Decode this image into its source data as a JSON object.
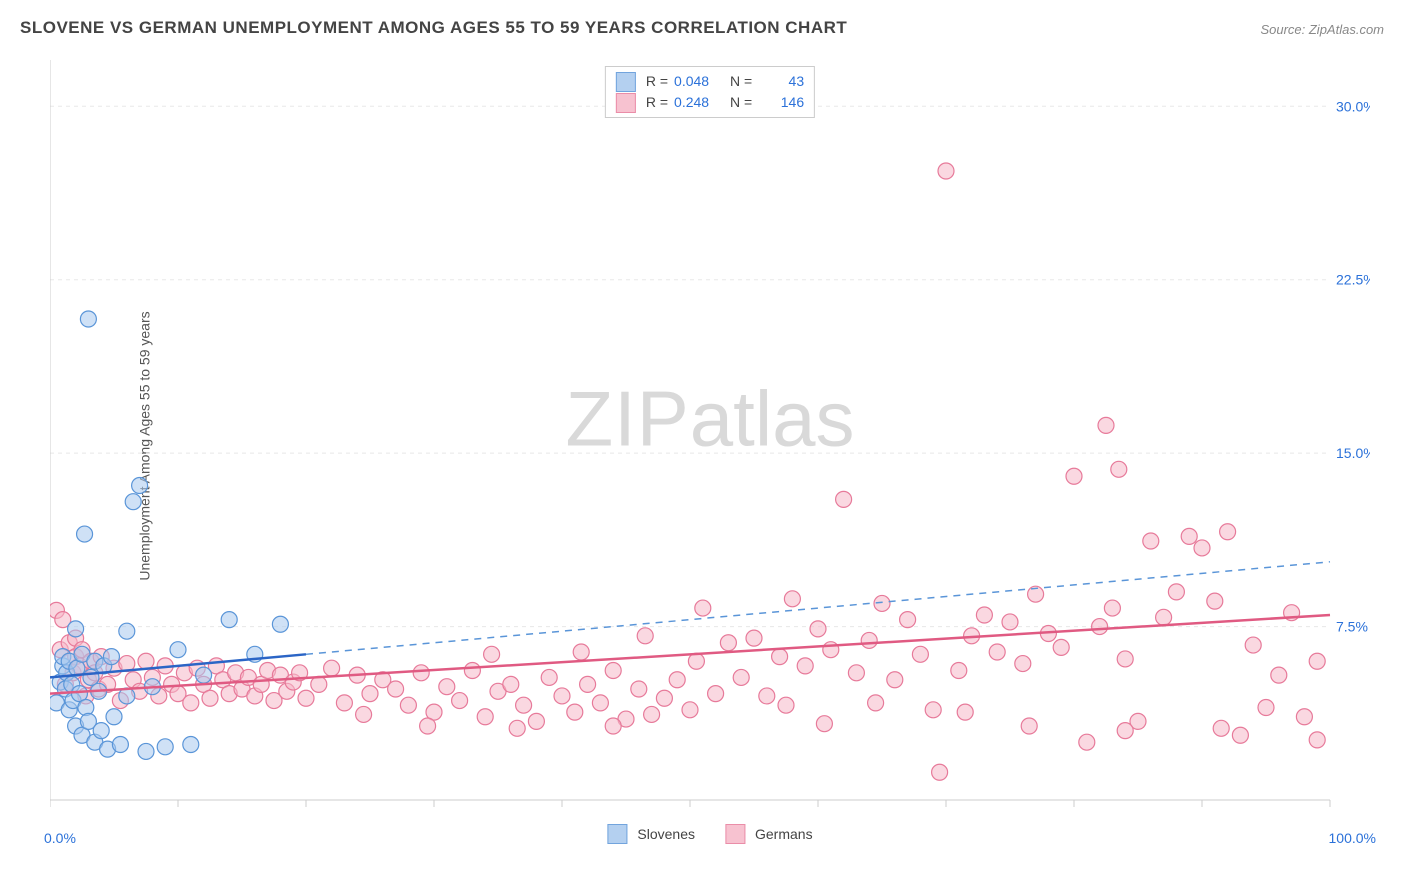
{
  "title": "SLOVENE VS GERMAN UNEMPLOYMENT AMONG AGES 55 TO 59 YEARS CORRELATION CHART",
  "source": "Source: ZipAtlas.com",
  "ylabel": "Unemployment Among Ages 55 to 59 years",
  "watermark_a": "ZIP",
  "watermark_b": "atlas",
  "chart": {
    "type": "scatter",
    "xlim": [
      0,
      100
    ],
    "ylim": [
      0,
      32
    ],
    "yticks": [
      7.5,
      15.0,
      22.5,
      30.0
    ],
    "ytick_labels": [
      "7.5%",
      "15.0%",
      "22.5%",
      "30.0%"
    ],
    "xticks": [
      0,
      10,
      20,
      30,
      40,
      50,
      60,
      70,
      80,
      90,
      100
    ],
    "xlabel_min": "0.0%",
    "xlabel_max": "100.0%",
    "background_color": "#ffffff",
    "grid_color": "#e8e8e8",
    "axis_color": "#cccccc",
    "tick_label_color": "#2b71d9",
    "marker_radius": 8,
    "marker_stroke_width": 1.2,
    "series": [
      {
        "name": "Slovenes",
        "legend_label": "Slovenes",
        "N": 43,
        "R": 0.048,
        "R_text": "0.048",
        "N_text": "43",
        "fill": "#a8c8ee",
        "fill_opacity": 0.55,
        "stroke": "#5a95d8",
        "trend_color": "#2b65c6",
        "trend_dash_color": "#5a95d8",
        "trend_solid_xmax": 20,
        "trend_y_at_x0": 5.3,
        "trend_y_at_x100": 10.3,
        "points": [
          [
            0.5,
            4.2
          ],
          [
            0.8,
            5.1
          ],
          [
            1.0,
            5.8
          ],
          [
            1.0,
            6.2
          ],
          [
            1.2,
            4.8
          ],
          [
            1.3,
            5.5
          ],
          [
            1.5,
            3.9
          ],
          [
            1.5,
            6.0
          ],
          [
            1.7,
            5.0
          ],
          [
            1.8,
            4.3
          ],
          [
            2.0,
            7.4
          ],
          [
            2.0,
            3.2
          ],
          [
            2.1,
            5.7
          ],
          [
            2.3,
            4.6
          ],
          [
            2.5,
            6.3
          ],
          [
            2.5,
            2.8
          ],
          [
            2.7,
            11.5
          ],
          [
            2.8,
            4.0
          ],
          [
            3.0,
            3.4
          ],
          [
            3.0,
            20.8
          ],
          [
            3.2,
            5.3
          ],
          [
            3.5,
            2.5
          ],
          [
            3.5,
            6.0
          ],
          [
            3.8,
            4.7
          ],
          [
            4.0,
            3.0
          ],
          [
            4.2,
            5.8
          ],
          [
            4.5,
            2.2
          ],
          [
            4.8,
            6.2
          ],
          [
            5.0,
            3.6
          ],
          [
            5.5,
            2.4
          ],
          [
            6.0,
            4.5
          ],
          [
            6.0,
            7.3
          ],
          [
            6.5,
            12.9
          ],
          [
            7.0,
            13.6
          ],
          [
            7.5,
            2.1
          ],
          [
            8.0,
            4.9
          ],
          [
            9.0,
            2.3
          ],
          [
            10.0,
            6.5
          ],
          [
            11.0,
            2.4
          ],
          [
            12.0,
            5.4
          ],
          [
            14.0,
            7.8
          ],
          [
            16.0,
            6.3
          ],
          [
            18.0,
            7.6
          ]
        ]
      },
      {
        "name": "Germans",
        "legend_label": "Germans",
        "N": 146,
        "R": 0.248,
        "R_text": "0.248",
        "N_text": "146",
        "fill": "#f6b8c8",
        "fill_opacity": 0.55,
        "stroke": "#e77a9a",
        "trend_color": "#e05a82",
        "trend_dash_color": "#e77a9a",
        "trend_solid_xmax": 100,
        "trend_y_at_x0": 4.6,
        "trend_y_at_x100": 8.0,
        "points": [
          [
            0.5,
            8.2
          ],
          [
            0.8,
            6.5
          ],
          [
            1.0,
            7.8
          ],
          [
            1.2,
            5.0
          ],
          [
            1.5,
            6.8
          ],
          [
            1.8,
            5.5
          ],
          [
            2.0,
            6.2
          ],
          [
            2.0,
            7.0
          ],
          [
            2.3,
            5.8
          ],
          [
            2.5,
            6.5
          ],
          [
            2.8,
            4.5
          ],
          [
            3.0,
            5.2
          ],
          [
            3.2,
            6.0
          ],
          [
            3.5,
            5.5
          ],
          [
            3.8,
            4.8
          ],
          [
            4.0,
            6.2
          ],
          [
            4.5,
            5.0
          ],
          [
            5.0,
            5.7
          ],
          [
            5.5,
            4.3
          ],
          [
            6.0,
            5.9
          ],
          [
            6.5,
            5.2
          ],
          [
            7.0,
            4.7
          ],
          [
            7.5,
            6.0
          ],
          [
            8.0,
            5.3
          ],
          [
            8.5,
            4.5
          ],
          [
            9.0,
            5.8
          ],
          [
            9.5,
            5.0
          ],
          [
            10.0,
            4.6
          ],
          [
            10.5,
            5.5
          ],
          [
            11.0,
            4.2
          ],
          [
            11.5,
            5.7
          ],
          [
            12.0,
            5.0
          ],
          [
            12.5,
            4.4
          ],
          [
            13.0,
            5.8
          ],
          [
            13.5,
            5.2
          ],
          [
            14.0,
            4.6
          ],
          [
            14.5,
            5.5
          ],
          [
            15.0,
            4.8
          ],
          [
            15.5,
            5.3
          ],
          [
            16.0,
            4.5
          ],
          [
            16.5,
            5.0
          ],
          [
            17.0,
            5.6
          ],
          [
            17.5,
            4.3
          ],
          [
            18.0,
            5.4
          ],
          [
            18.5,
            4.7
          ],
          [
            19.0,
            5.1
          ],
          [
            19.5,
            5.5
          ],
          [
            20.0,
            4.4
          ],
          [
            21.0,
            5.0
          ],
          [
            22.0,
            5.7
          ],
          [
            23.0,
            4.2
          ],
          [
            24.0,
            5.4
          ],
          [
            25.0,
            4.6
          ],
          [
            26.0,
            5.2
          ],
          [
            27.0,
            4.8
          ],
          [
            28.0,
            4.1
          ],
          [
            29.0,
            5.5
          ],
          [
            30.0,
            3.8
          ],
          [
            31.0,
            4.9
          ],
          [
            32.0,
            4.3
          ],
          [
            33.0,
            5.6
          ],
          [
            34.0,
            3.6
          ],
          [
            35.0,
            4.7
          ],
          [
            36.0,
            5.0
          ],
          [
            37.0,
            4.1
          ],
          [
            38.0,
            3.4
          ],
          [
            39.0,
            5.3
          ],
          [
            40.0,
            4.5
          ],
          [
            41.0,
            3.8
          ],
          [
            42.0,
            5.0
          ],
          [
            43.0,
            4.2
          ],
          [
            44.0,
            5.6
          ],
          [
            45.0,
            3.5
          ],
          [
            46.0,
            4.8
          ],
          [
            47.0,
            3.7
          ],
          [
            48.0,
            4.4
          ],
          [
            49.0,
            5.2
          ],
          [
            50.0,
            3.9
          ],
          [
            51.0,
            8.3
          ],
          [
            52.0,
            4.6
          ],
          [
            53.0,
            6.8
          ],
          [
            54.0,
            5.3
          ],
          [
            55.0,
            7.0
          ],
          [
            56.0,
            4.5
          ],
          [
            57.0,
            6.2
          ],
          [
            58.0,
            8.7
          ],
          [
            59.0,
            5.8
          ],
          [
            60.0,
            7.4
          ],
          [
            61.0,
            6.5
          ],
          [
            62.0,
            13.0
          ],
          [
            63.0,
            5.5
          ],
          [
            64.0,
            6.9
          ],
          [
            65.0,
            8.5
          ],
          [
            66.0,
            5.2
          ],
          [
            67.0,
            7.8
          ],
          [
            68.0,
            6.3
          ],
          [
            69.0,
            3.9
          ],
          [
            69.5,
            1.2
          ],
          [
            70.0,
            27.2
          ],
          [
            71.0,
            5.6
          ],
          [
            72.0,
            7.1
          ],
          [
            73.0,
            8.0
          ],
          [
            74.0,
            6.4
          ],
          [
            75.0,
            7.7
          ],
          [
            76.0,
            5.9
          ],
          [
            77.0,
            8.9
          ],
          [
            78.0,
            7.2
          ],
          [
            79.0,
            6.6
          ],
          [
            80.0,
            14.0
          ],
          [
            81.0,
            2.5
          ],
          [
            82.0,
            7.5
          ],
          [
            82.5,
            16.2
          ],
          [
            83.0,
            8.3
          ],
          [
            83.5,
            14.3
          ],
          [
            84.0,
            6.1
          ],
          [
            85.0,
            3.4
          ],
          [
            86.0,
            11.2
          ],
          [
            87.0,
            7.9
          ],
          [
            88.0,
            9.0
          ],
          [
            89.0,
            11.4
          ],
          [
            90.0,
            10.9
          ],
          [
            91.0,
            8.6
          ],
          [
            91.5,
            3.1
          ],
          [
            92.0,
            11.6
          ],
          [
            93.0,
            2.8
          ],
          [
            94.0,
            6.7
          ],
          [
            95.0,
            4.0
          ],
          [
            96.0,
            5.4
          ],
          [
            97.0,
            8.1
          ],
          [
            98.0,
            3.6
          ],
          [
            99.0,
            6.0
          ],
          [
            99.0,
            2.6
          ],
          [
            84.0,
            3.0
          ],
          [
            60.5,
            3.3
          ],
          [
            50.5,
            6.0
          ],
          [
            46.5,
            7.1
          ],
          [
            44.0,
            3.2
          ],
          [
            41.5,
            6.4
          ],
          [
            36.5,
            3.1
          ],
          [
            34.5,
            6.3
          ],
          [
            29.5,
            3.2
          ],
          [
            24.5,
            3.7
          ],
          [
            71.5,
            3.8
          ],
          [
            76.5,
            3.2
          ],
          [
            64.5,
            4.2
          ],
          [
            57.5,
            4.1
          ]
        ]
      }
    ]
  }
}
